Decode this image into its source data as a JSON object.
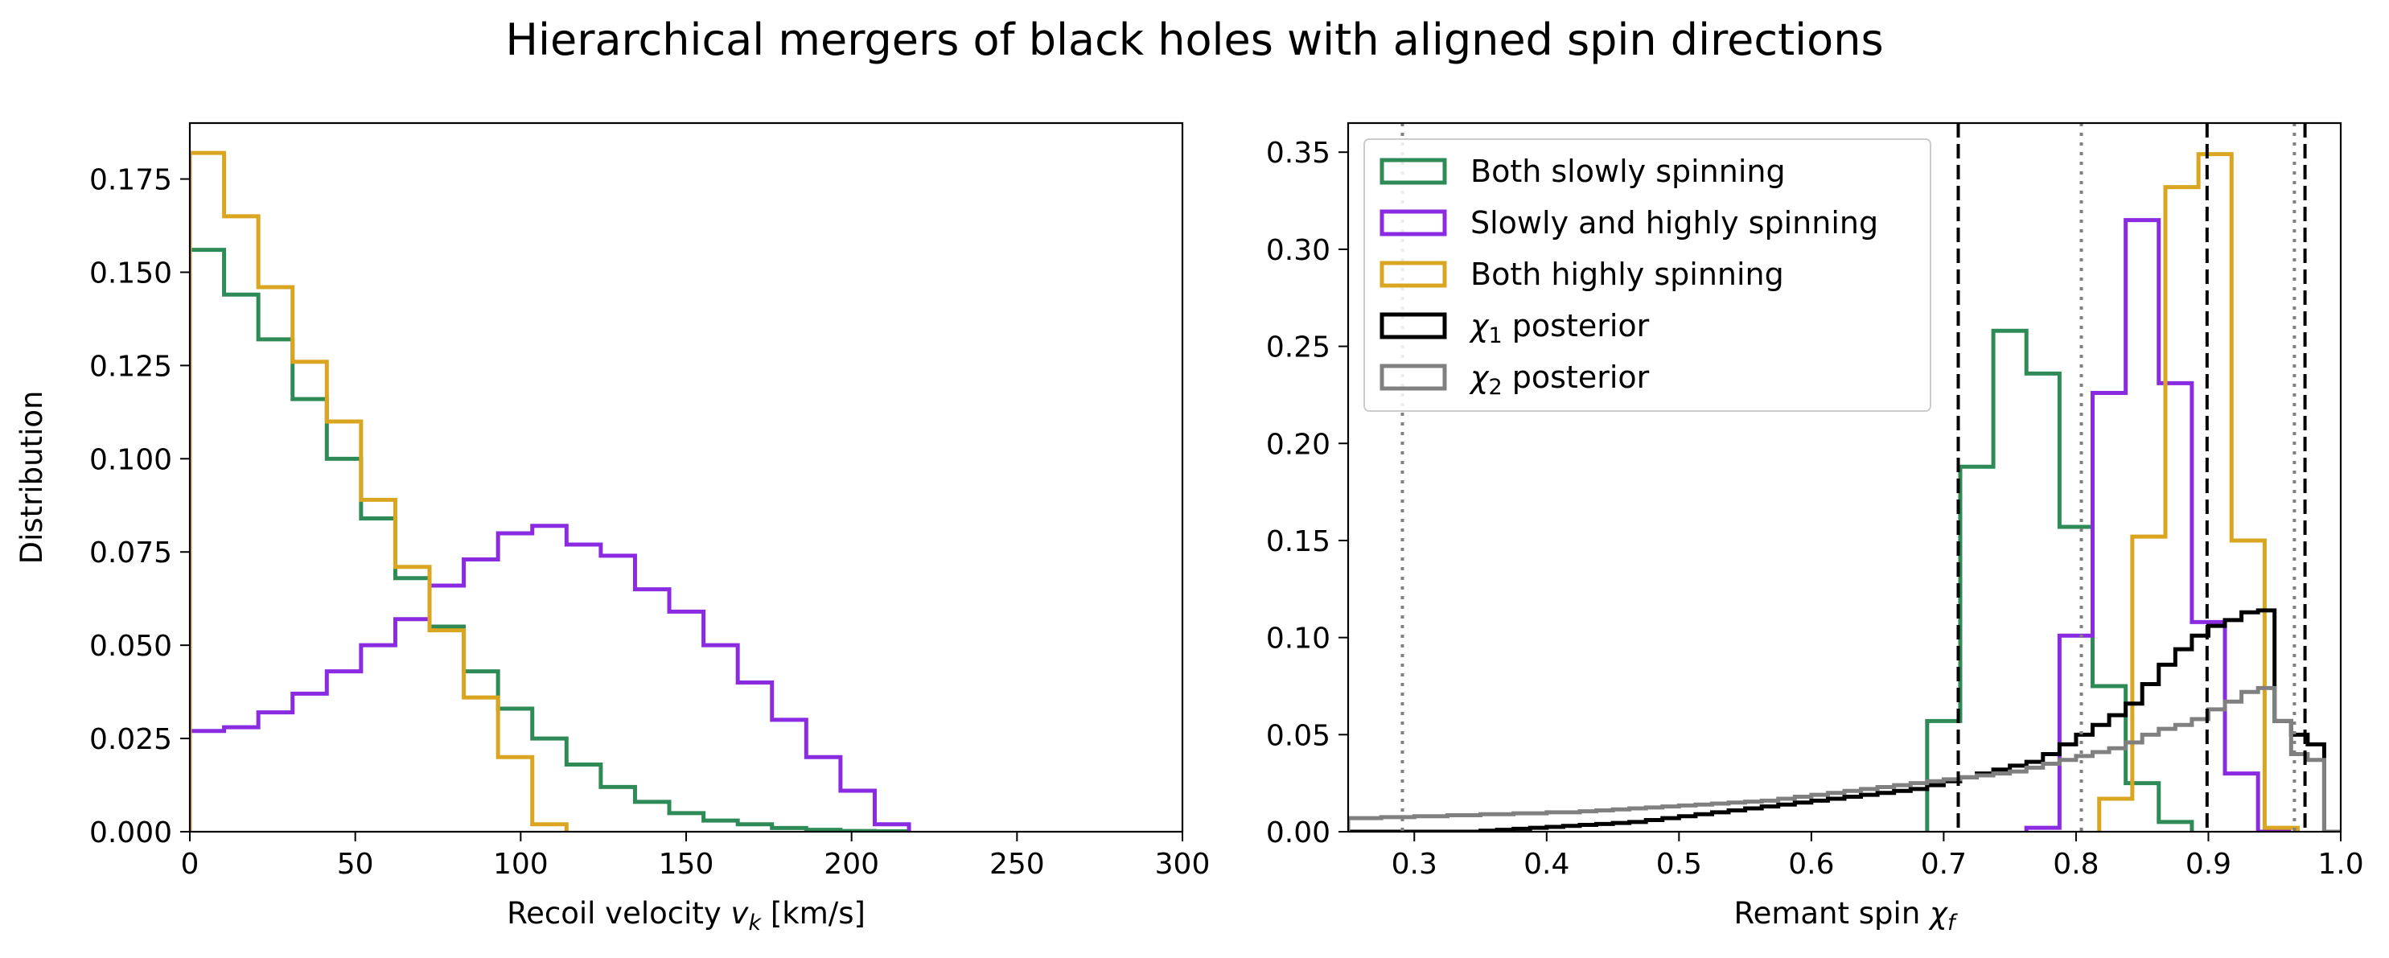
{
  "figure": {
    "title": "Hierarchical mergers of black holes with aligned spin directions"
  },
  "colors": {
    "green": "#2e8b57",
    "purple": "#8a2be2",
    "orange": "#daa520",
    "black": "#000000",
    "gray": "#808080"
  },
  "chart_data": [
    {
      "type": "histogram",
      "xlabel_prefix": "Recoil velocity ",
      "xlabel_var": "v",
      "xlabel_sub": "k",
      "xlabel_suffix": " [km/s]",
      "ylabel": "Distribution",
      "xlim": [
        0,
        300
      ],
      "ylim": [
        0,
        0.19
      ],
      "xticks": [
        0,
        50,
        100,
        150,
        200,
        250,
        300
      ],
      "xtick_labels": [
        "0",
        "50",
        "100",
        "150",
        "200",
        "250",
        "300"
      ],
      "yticks": [
        0,
        0.025,
        0.05,
        0.075,
        0.1,
        0.125,
        0.15,
        0.175
      ],
      "ytick_labels": [
        "0.000",
        "0.025",
        "0.050",
        "0.075",
        "0.100",
        "0.125",
        "0.150",
        "0.175"
      ],
      "bin_width": 10.35,
      "series": [
        {
          "name": "Both slowly spinning",
          "color": "green",
          "values": [
            0.156,
            0.144,
            0.132,
            0.116,
            0.1,
            0.084,
            0.068,
            0.055,
            0.043,
            0.033,
            0.025,
            0.018,
            0.012,
            0.008,
            0.005,
            0.003,
            0.002,
            0.001,
            0.0005,
            0.0002,
            0.0001
          ]
        },
        {
          "name": "Slowly and highly spinning",
          "color": "purple",
          "values": [
            0.027,
            0.028,
            0.032,
            0.037,
            0.043,
            0.05,
            0.057,
            0.066,
            0.073,
            0.08,
            0.082,
            0.077,
            0.074,
            0.065,
            0.059,
            0.05,
            0.04,
            0.03,
            0.02,
            0.011,
            0.002
          ]
        },
        {
          "name": "Both highly spinning",
          "color": "orange",
          "values": [
            0.182,
            0.165,
            0.146,
            0.126,
            0.11,
            0.089,
            0.071,
            0.054,
            0.036,
            0.02,
            0.002
          ]
        }
      ]
    },
    {
      "type": "histogram",
      "xlabel_prefix": "Remant spin ",
      "xlabel_var": "χ",
      "xlabel_sub": "f",
      "xlabel_suffix": "",
      "ylabel": "",
      "xlim": [
        0.25,
        1.0
      ],
      "ylim": [
        0,
        0.365
      ],
      "xticks": [
        0.3,
        0.4,
        0.5,
        0.6,
        0.7,
        0.8,
        0.9,
        1.0
      ],
      "xtick_labels": [
        "0.3",
        "0.4",
        "0.5",
        "0.6",
        "0.7",
        "0.8",
        "0.9",
        "1.0"
      ],
      "yticks": [
        0,
        0.05,
        0.1,
        0.15,
        0.2,
        0.25,
        0.3,
        0.35
      ],
      "ytick_labels": [
        "0.00",
        "0.05",
        "0.10",
        "0.15",
        "0.20",
        "0.25",
        "0.30",
        "0.35"
      ],
      "legend_position": "upper-left",
      "series": [
        {
          "name": "Both slowly spinning",
          "color": "green",
          "x0": 0.6875,
          "bin_width": 0.025,
          "values": [
            0.057,
            0.188,
            0.258,
            0.236,
            0.157,
            0.075,
            0.025,
            0.005
          ]
        },
        {
          "name": "Slowly and highly spinning",
          "color": "purple",
          "x0": 0.7625,
          "bin_width": 0.025,
          "values": [
            0.002,
            0.101,
            0.226,
            0.315,
            0.231,
            0.108,
            0.03,
            0.0
          ]
        },
        {
          "name": "Both highly spinning",
          "color": "orange",
          "x0": 0.8175,
          "bin_width": 0.025,
          "values": [
            0.017,
            0.152,
            0.332,
            0.349,
            0.15,
            0.002
          ]
        },
        {
          "name": "χ₁ posterior",
          "color": "black",
          "x0": 0.25,
          "bin_width": 0.0125,
          "values": [
            0.0,
            0.0,
            0.0,
            0.0,
            0.0,
            0.0,
            0.0,
            0.0,
            0.0005,
            0.001,
            0.0015,
            0.002,
            0.0025,
            0.003,
            0.0035,
            0.004,
            0.0045,
            0.005,
            0.006,
            0.007,
            0.008,
            0.009,
            0.01,
            0.011,
            0.012,
            0.013,
            0.014,
            0.015,
            0.016,
            0.017,
            0.018,
            0.019,
            0.02,
            0.021,
            0.022,
            0.024,
            0.026,
            0.028,
            0.03,
            0.032,
            0.034,
            0.036,
            0.04,
            0.045,
            0.05,
            0.055,
            0.06,
            0.066,
            0.076,
            0.086,
            0.094,
            0.101,
            0.106,
            0.109,
            0.113,
            0.114,
            0.057,
            0.05,
            0.045,
            0.0
          ]
        },
        {
          "name": "χ₂ posterior",
          "color": "gray",
          "x0": 0.25,
          "bin_width": 0.0125,
          "values": [
            0.007,
            0.007,
            0.0075,
            0.0075,
            0.008,
            0.008,
            0.0085,
            0.0085,
            0.009,
            0.009,
            0.0095,
            0.0095,
            0.01,
            0.01,
            0.0105,
            0.011,
            0.0115,
            0.012,
            0.0125,
            0.013,
            0.0135,
            0.014,
            0.0145,
            0.015,
            0.0155,
            0.016,
            0.017,
            0.018,
            0.019,
            0.02,
            0.021,
            0.022,
            0.023,
            0.024,
            0.025,
            0.026,
            0.027,
            0.028,
            0.029,
            0.03,
            0.031,
            0.033,
            0.035,
            0.037,
            0.039,
            0.041,
            0.043,
            0.046,
            0.05,
            0.053,
            0.055,
            0.058,
            0.063,
            0.067,
            0.072,
            0.074,
            0.057,
            0.04,
            0.037,
            0.0
          ]
        }
      ],
      "vlines": [
        {
          "x": 0.711,
          "style": "dashed",
          "color": "black"
        },
        {
          "x": 0.899,
          "style": "dashed",
          "color": "black"
        },
        {
          "x": 0.973,
          "style": "dashed",
          "color": "black"
        },
        {
          "x": 0.291,
          "style": "dotted",
          "color": "gray"
        },
        {
          "x": 0.804,
          "style": "dotted",
          "color": "gray"
        },
        {
          "x": 0.965,
          "style": "dotted",
          "color": "gray"
        }
      ],
      "legend": [
        {
          "label": "Both slowly spinning",
          "color": "green"
        },
        {
          "label": "Slowly and highly spinning",
          "color": "purple"
        },
        {
          "label": "Both highly spinning",
          "color": "orange"
        },
        {
          "label_prefix": "χ",
          "label_sub": "1",
          "label_suffix": " posterior",
          "color": "black"
        },
        {
          "label_prefix": "χ",
          "label_sub": "2",
          "label_suffix": " posterior",
          "color": "gray"
        }
      ]
    }
  ]
}
